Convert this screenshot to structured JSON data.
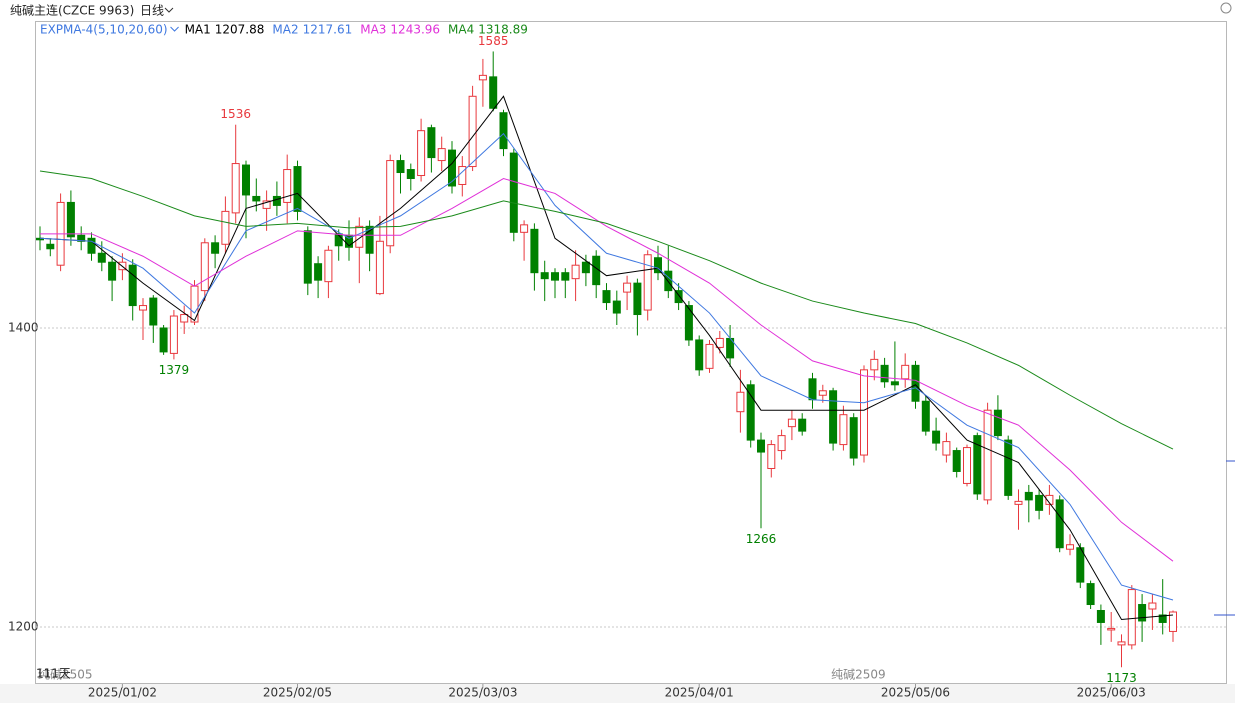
{
  "chart_data": {
    "type": "candlestick",
    "title": "纯碱主连(CZCE 9963)",
    "period": "日线",
    "indicator": "EXPMA-4(5,10,20,60)",
    "ylim": [
      1162.5,
      1604.7
    ],
    "yticks": [
      1200,
      1400
    ],
    "grid": true,
    "up_color": "#e8383d",
    "down_color": "#008000",
    "ohlc": [
      [
        1460,
        1468,
        1452,
        1459
      ],
      [
        1456,
        1460,
        1448,
        1453
      ],
      [
        1442,
        1490,
        1438,
        1484
      ],
      [
        1484,
        1492,
        1455,
        1461
      ],
      [
        1462,
        1468,
        1452,
        1458
      ],
      [
        1460,
        1464,
        1445,
        1450
      ],
      [
        1450,
        1458,
        1438,
        1444
      ],
      [
        1444,
        1448,
        1418,
        1432
      ],
      [
        1439,
        1450,
        1432,
        1444
      ],
      [
        1442,
        1446,
        1405,
        1415
      ],
      [
        1412,
        1420,
        1392,
        1415
      ],
      [
        1420,
        1422,
        1390,
        1402
      ],
      [
        1400,
        1402,
        1382,
        1384
      ],
      [
        1383,
        1412,
        1379,
        1408
      ],
      [
        1404,
        1415,
        1396,
        1409
      ],
      [
        1404,
        1432,
        1402,
        1428
      ],
      [
        1425,
        1460,
        1418,
        1457
      ],
      [
        1457,
        1462,
        1440,
        1450
      ],
      [
        1456,
        1488,
        1450,
        1478
      ],
      [
        1477,
        1536,
        1470,
        1510
      ],
      [
        1509,
        1512,
        1460,
        1489
      ],
      [
        1488,
        1500,
        1478,
        1485
      ],
      [
        1480,
        1492,
        1465,
        1485
      ],
      [
        1488,
        1498,
        1475,
        1482
      ],
      [
        1484,
        1516,
        1470,
        1506
      ],
      [
        1508,
        1512,
        1472,
        1478
      ],
      [
        1465,
        1468,
        1422,
        1430
      ],
      [
        1443,
        1448,
        1420,
        1432
      ],
      [
        1431,
        1455,
        1420,
        1452
      ],
      [
        1463,
        1466,
        1445,
        1455
      ],
      [
        1462,
        1472,
        1445,
        1454
      ],
      [
        1454,
        1474,
        1430,
        1468
      ],
      [
        1468,
        1472,
        1438,
        1450
      ],
      [
        1423,
        1475,
        1422,
        1458
      ],
      [
        1455,
        1516,
        1450,
        1512
      ],
      [
        1512,
        1516,
        1490,
        1504
      ],
      [
        1506,
        1510,
        1492,
        1500
      ],
      [
        1502,
        1540,
        1498,
        1532
      ],
      [
        1534,
        1536,
        1504,
        1514
      ],
      [
        1512,
        1528,
        1505,
        1520
      ],
      [
        1519,
        1525,
        1490,
        1495
      ],
      [
        1496,
        1515,
        1488,
        1508
      ],
      [
        1508,
        1562,
        1505,
        1555
      ],
      [
        1566,
        1580,
        1548,
        1569
      ],
      [
        1568,
        1585,
        1545,
        1547
      ],
      [
        1544,
        1546,
        1515,
        1520
      ],
      [
        1517,
        1520,
        1458,
        1464
      ],
      [
        1464,
        1472,
        1445,
        1469
      ],
      [
        1466,
        1470,
        1425,
        1437
      ],
      [
        1437,
        1445,
        1418,
        1433
      ],
      [
        1437,
        1440,
        1420,
        1432
      ],
      [
        1437,
        1440,
        1420,
        1432
      ],
      [
        1433,
        1452,
        1418,
        1442
      ],
      [
        1444,
        1449,
        1428,
        1437
      ],
      [
        1448,
        1452,
        1420,
        1429
      ],
      [
        1425,
        1430,
        1412,
        1417
      ],
      [
        1418,
        1425,
        1402,
        1410
      ],
      [
        1424,
        1435,
        1412,
        1430
      ],
      [
        1430,
        1433,
        1395,
        1409
      ],
      [
        1412,
        1452,
        1405,
        1449
      ],
      [
        1447,
        1455,
        1432,
        1437
      ],
      [
        1438,
        1455,
        1420,
        1425
      ],
      [
        1425,
        1430,
        1412,
        1417
      ],
      [
        1415,
        1418,
        1388,
        1392
      ],
      [
        1392,
        1395,
        1368,
        1372
      ],
      [
        1373,
        1392,
        1370,
        1389
      ],
      [
        1387,
        1398,
        1383,
        1393
      ],
      [
        1393,
        1402,
        1374,
        1380
      ],
      [
        1344,
        1372,
        1330,
        1357
      ],
      [
        1362,
        1365,
        1320,
        1325
      ],
      [
        1325,
        1330,
        1266,
        1317
      ],
      [
        1306,
        1325,
        1300,
        1322
      ],
      [
        1318,
        1332,
        1312,
        1328
      ],
      [
        1334,
        1345,
        1325,
        1339
      ],
      [
        1339,
        1343,
        1328,
        1331
      ],
      [
        1366,
        1370,
        1346,
        1352
      ],
      [
        1355,
        1362,
        1350,
        1358
      ],
      [
        1358,
        1360,
        1318,
        1323
      ],
      [
        1322,
        1348,
        1318,
        1342
      ],
      [
        1340,
        1343,
        1308,
        1313
      ],
      [
        1315,
        1375,
        1310,
        1372
      ],
      [
        1372,
        1385,
        1365,
        1379
      ],
      [
        1375,
        1380,
        1360,
        1364
      ],
      [
        1364,
        1391,
        1358,
        1362
      ],
      [
        1366,
        1383,
        1360,
        1375
      ],
      [
        1375,
        1378,
        1346,
        1351
      ],
      [
        1351,
        1355,
        1328,
        1331
      ],
      [
        1331,
        1340,
        1318,
        1323
      ],
      [
        1315,
        1330,
        1310,
        1324
      ],
      [
        1318,
        1320,
        1300,
        1304
      ],
      [
        1296,
        1322,
        1294,
        1320
      ],
      [
        1328,
        1330,
        1285,
        1289
      ],
      [
        1285,
        1350,
        1282,
        1345
      ],
      [
        1345,
        1355,
        1325,
        1328
      ],
      [
        1325,
        1328,
        1285,
        1288
      ],
      [
        1282,
        1292,
        1265,
        1284
      ],
      [
        1290,
        1295,
        1270,
        1285
      ],
      [
        1288,
        1292,
        1272,
        1278
      ],
      [
        1282,
        1295,
        1275,
        1288
      ],
      [
        1285,
        1288,
        1250,
        1253
      ],
      [
        1252,
        1262,
        1248,
        1255
      ],
      [
        1253,
        1256,
        1226,
        1230
      ],
      [
        1229,
        1231,
        1212,
        1215
      ],
      [
        1211,
        1215,
        1188,
        1203
      ],
      [
        1198,
        1210,
        1190,
        1199
      ],
      [
        1188,
        1195,
        1173,
        1190
      ],
      [
        1188,
        1228,
        1185,
        1225
      ],
      [
        1215,
        1222,
        1190,
        1204
      ],
      [
        1212,
        1222,
        1198,
        1216
      ],
      [
        1208,
        1232,
        1195,
        1203
      ],
      [
        1197,
        1211,
        1190,
        1210
      ]
    ],
    "ma_x": [
      0,
      5,
      10,
      15,
      20,
      25,
      30,
      35,
      40,
      45,
      50,
      55,
      60,
      65,
      70,
      75,
      80,
      85,
      90,
      95,
      100,
      105,
      110
    ],
    "ma": [
      {
        "name": "MA1",
        "last": 1207.88,
        "color": "#000000",
        "values": [
          1460,
          1458,
          1430,
          1405,
          1480,
          1490,
          1455,
          1480,
          1510,
          1555,
          1460,
          1435,
          1440,
          1395,
          1345,
          1345,
          1345,
          1362,
          1325,
          1310,
          1265,
          1205,
          1208
        ]
      },
      {
        "name": "MA2",
        "last": 1217.61,
        "color": "#3f78e0",
        "values": [
          1460,
          1458,
          1440,
          1410,
          1465,
          1480,
          1460,
          1475,
          1498,
          1530,
          1482,
          1450,
          1440,
          1410,
          1368,
          1352,
          1350,
          1360,
          1335,
          1320,
          1282,
          1228,
          1218
        ]
      },
      {
        "name": "MA3",
        "last": 1243.96,
        "color": "#e030d8",
        "values": [
          1463,
          1463,
          1448,
          1428,
          1448,
          1465,
          1462,
          1462,
          1480,
          1500,
          1490,
          1468,
          1450,
          1430,
          1402,
          1378,
          1368,
          1365,
          1348,
          1335,
          1305,
          1270,
          1244
        ]
      },
      {
        "name": "MA4",
        "last": 1318.89,
        "color": "#1a8a1a",
        "values": [
          1505,
          1500,
          1488,
          1475,
          1468,
          1470,
          1467,
          1468,
          1475,
          1485,
          1478,
          1470,
          1458,
          1445,
          1430,
          1418,
          1410,
          1403,
          1390,
          1375,
          1355,
          1336,
          1319
        ]
      }
    ],
    "annotations": [
      {
        "value": 1585,
        "x": 44,
        "kind": "high",
        "color": "#e8383d"
      },
      {
        "value": 1536,
        "x": 19,
        "kind": "high",
        "color": "#e8383d"
      },
      {
        "value": 1379,
        "x": 13,
        "kind": "low",
        "color": "#008000"
      },
      {
        "value": 1266,
        "x": 70,
        "kind": "low",
        "color": "#008000"
      },
      {
        "value": 1173,
        "x": 105,
        "kind": "low",
        "color": "#008000"
      }
    ],
    "date_ticks": [
      {
        "value": 8,
        "label": "2025/01/02"
      },
      {
        "value": 25,
        "label": "2025/02/05"
      },
      {
        "value": 43,
        "label": "2025/03/03"
      },
      {
        "value": 64,
        "label": "2025/04/01"
      },
      {
        "value": 85,
        "label": "2025/05/06"
      },
      {
        "value": 104,
        "label": "2025/06/03"
      }
    ],
    "contracts": [
      {
        "x": 0,
        "label": "纯碱2505"
      },
      {
        "x": 77,
        "label": "纯碱2509"
      }
    ],
    "day_count": "111天"
  }
}
